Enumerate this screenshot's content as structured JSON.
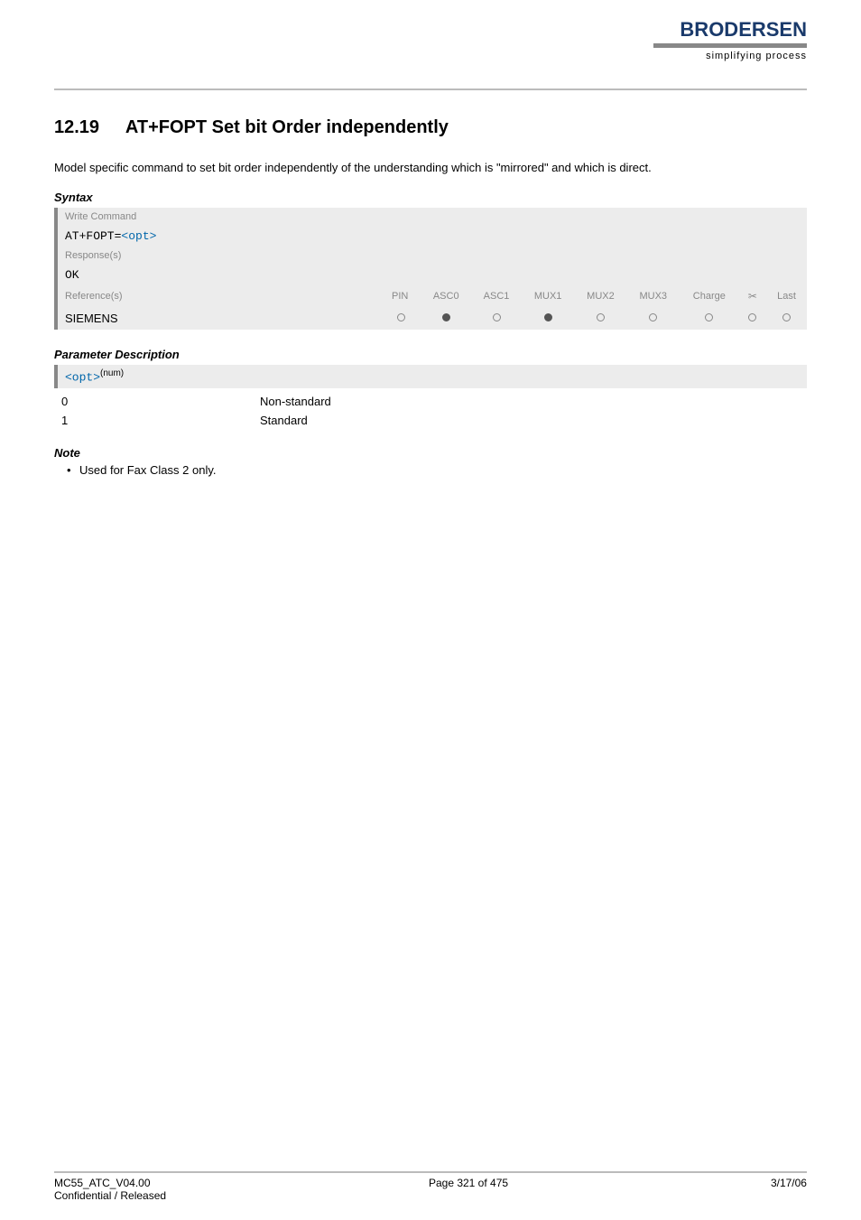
{
  "header": {
    "logo_text": "BRODERSEN",
    "tagline": "simplifying process"
  },
  "section": {
    "number": "12.19",
    "title": "AT+FOPT   Set bit Order independently",
    "intro": "Model specific command to set bit order independently of the understanding which is \"mirrored\" and which is direct."
  },
  "syntax": {
    "heading": "Syntax",
    "write_label": "Write Command",
    "write_value_prefix": "AT+FOPT=",
    "write_value_param": "<opt>",
    "response_label": "Response(s)",
    "response_value": "OK",
    "ref_label": "Reference(s)",
    "ref_value": "SIEMENS",
    "columns": [
      "PIN",
      "ASC0",
      "ASC1",
      "MUX1",
      "MUX2",
      "MUX3",
      "Charge",
      "tool",
      "Last"
    ],
    "dots": [
      "open",
      "filled",
      "open",
      "filled",
      "open",
      "open",
      "open",
      "open",
      "open"
    ]
  },
  "params": {
    "heading": "Parameter Description",
    "name": "<opt>",
    "sup": "(num)",
    "values": [
      {
        "key": "0",
        "desc": "Non-standard"
      },
      {
        "key": "1",
        "desc": "Standard"
      }
    ]
  },
  "note": {
    "heading": "Note",
    "items": [
      "Used for Fax Class 2 only."
    ]
  },
  "footer": {
    "left1": "MC55_ATC_V04.00",
    "left2": "Confidential / Released",
    "center": "Page 321 of 475",
    "right": "3/17/06"
  }
}
